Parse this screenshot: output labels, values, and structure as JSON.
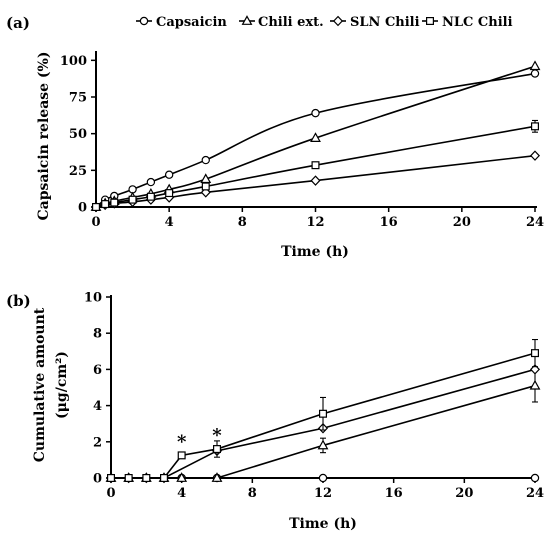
{
  "chart_data": [
    {
      "panel_label": "(a)",
      "type": "line",
      "xlabel": "Time (h)",
      "ylabel": "Capsaicin release (%)",
      "xlim": [
        0,
        24
      ],
      "ylim": [
        0,
        105
      ],
      "xticks": [
        0,
        4,
        8,
        12,
        16,
        20,
        24
      ],
      "yticks": [
        0,
        25,
        50,
        75,
        100
      ],
      "legend_position": "top",
      "series": [
        {
          "name": "Capsaicin",
          "marker": "circle",
          "points": [
            [
              0,
              0
            ],
            [
              0.5,
              5
            ],
            [
              1,
              7.5
            ],
            [
              2,
              12
            ],
            [
              3,
              17
            ],
            [
              4,
              22
            ],
            [
              6,
              32
            ],
            [
              12,
              64
            ],
            [
              24,
              91
            ]
          ]
        },
        {
          "name": "Chili ext.",
          "marker": "triangle",
          "points": [
            [
              0,
              0
            ],
            [
              0.5,
              2.5
            ],
            [
              1,
              4
            ],
            [
              2,
              6.5
            ],
            [
              3,
              9
            ],
            [
              4,
              12
            ],
            [
              6,
              19
            ],
            [
              12,
              47
            ],
            [
              24,
              96
            ]
          ]
        },
        {
          "name": "SLN Chili",
          "marker": "diamond",
          "points": [
            [
              0,
              0
            ],
            [
              0.5,
              1.5
            ],
            [
              1,
              2.5
            ],
            [
              2,
              3.5
            ],
            [
              3,
              5
            ],
            [
              4,
              6.5
            ],
            [
              6,
              10
            ],
            [
              12,
              18
            ],
            [
              24,
              35
            ]
          ]
        },
        {
          "name": "NLC Chili",
          "marker": "square",
          "points": [
            [
              0,
              0
            ],
            [
              0.5,
              2
            ],
            [
              1,
              3
            ],
            [
              2,
              5
            ],
            [
              3,
              7
            ],
            [
              4,
              9.5
            ],
            [
              6,
              14
            ],
            [
              12,
              28.5
            ],
            [
              24,
              55
            ]
          ],
          "error": [
            [
              24,
              4
            ]
          ]
        }
      ]
    },
    {
      "panel_label": "(b)",
      "type": "line",
      "xlabel": "Time (h)",
      "ylabel": "Cumulative amount",
      "ylabel_unit": "(μg/cm²)",
      "xlim": [
        0,
        24
      ],
      "ylim": [
        0,
        10
      ],
      "xticks": [
        0,
        4,
        8,
        12,
        16,
        20,
        24
      ],
      "yticks": [
        0,
        2,
        4,
        6,
        8,
        10
      ],
      "annotations": [
        {
          "x": 4,
          "y": 1.25,
          "text": "*"
        },
        {
          "x": 6,
          "y": 1.6,
          "text": "*"
        }
      ],
      "series": [
        {
          "name": "Capsaicin",
          "marker": "circle",
          "points": [
            [
              0,
              0
            ],
            [
              4,
              0
            ],
            [
              6,
              0
            ],
            [
              12,
              0
            ],
            [
              24,
              0
            ]
          ]
        },
        {
          "name": "Chili ext.",
          "marker": "triangle",
          "points": [
            [
              0,
              0
            ],
            [
              1,
              0
            ],
            [
              2,
              0
            ],
            [
              3,
              0
            ],
            [
              4,
              0
            ],
            [
              6,
              0
            ],
            [
              12,
              1.8
            ],
            [
              24,
              5.1
            ]
          ],
          "error": [
            [
              12,
              0.4
            ],
            [
              24,
              0.9
            ]
          ]
        },
        {
          "name": "SLN Chili",
          "marker": "diamond",
          "points": [
            [
              0,
              0
            ],
            [
              1,
              0
            ],
            [
              2,
              0
            ],
            [
              3,
              0
            ],
            [
              6,
              1.5
            ],
            [
              12,
              2.75
            ],
            [
              24,
              6
            ]
          ]
        },
        {
          "name": "NLC Chili",
          "marker": "square",
          "points": [
            [
              0,
              0
            ],
            [
              1,
              0
            ],
            [
              2,
              0
            ],
            [
              3,
              0
            ],
            [
              4,
              1.25
            ],
            [
              6,
              1.6
            ],
            [
              12,
              3.55
            ],
            [
              24,
              6.9
            ]
          ],
          "error": [
            [
              6,
              0.45
            ],
            [
              12,
              0.9
            ],
            [
              24,
              0.75
            ]
          ]
        }
      ]
    }
  ]
}
